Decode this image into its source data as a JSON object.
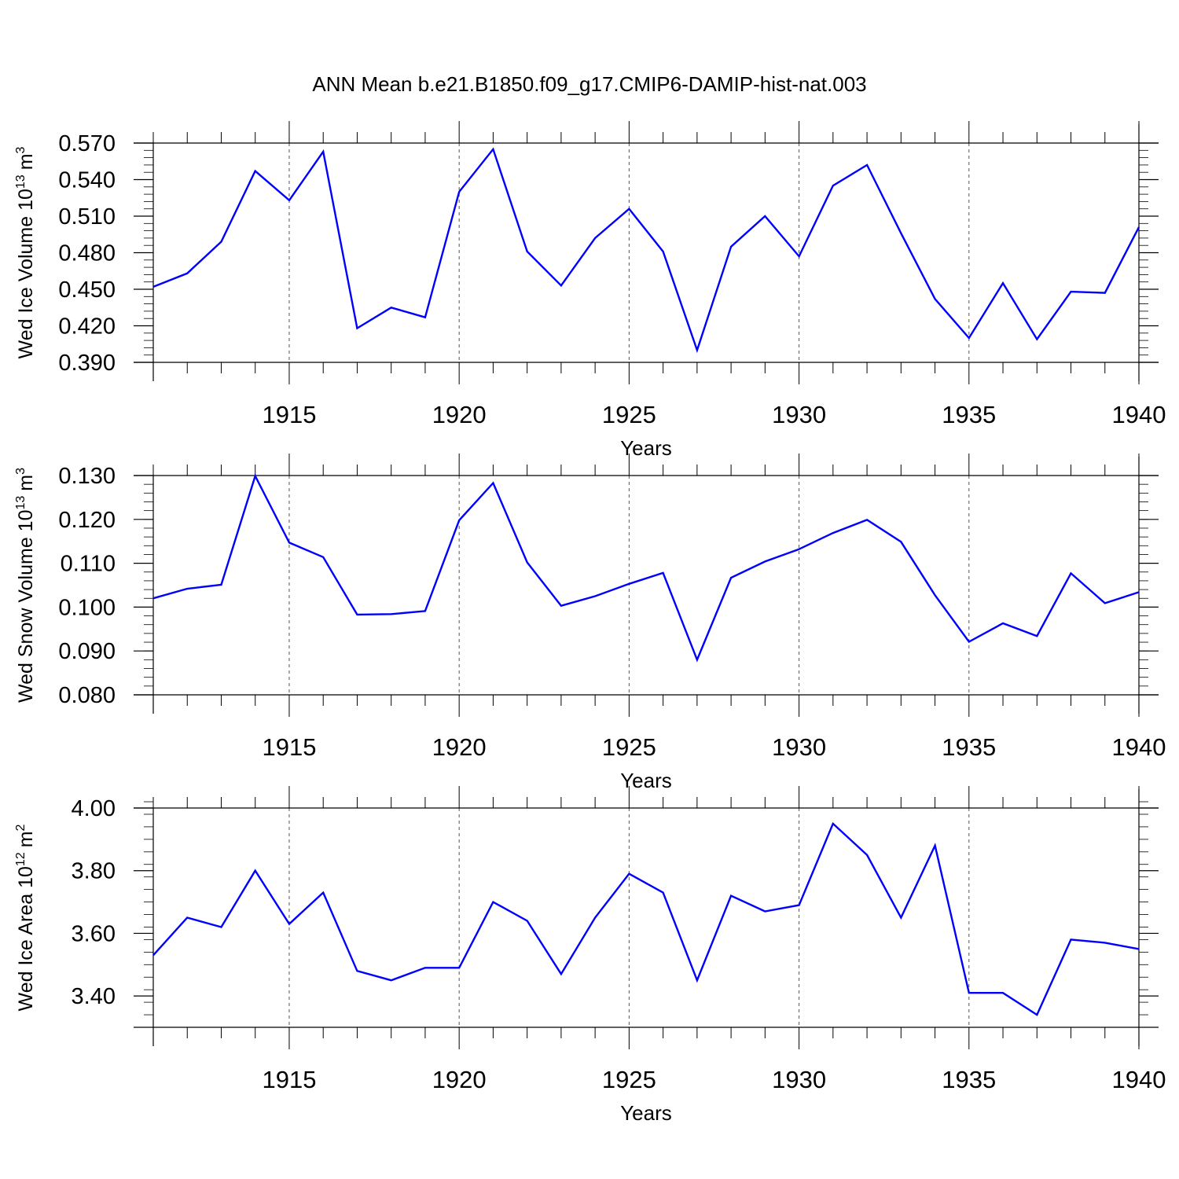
{
  "title": "ANN Mean b.e21.B1850.f09_g17.CMIP6-DAMIP-hist-nat.003",
  "colors": {
    "line": "#0000ff",
    "axis": "#000000",
    "grid": "#555555",
    "background": "#ffffff"
  },
  "chart_data": [
    {
      "type": "line",
      "xlabel": "Years",
      "ylabel": "Wed Ice Volume 10",
      "ylabel_sup": "13",
      "ylabel_unit": "m",
      "ylabel_unit_sup": "3",
      "xlim": [
        1911,
        1940
      ],
      "ylim": [
        0.39,
        0.57
      ],
      "grid": "vertical dashed at major x ticks",
      "x_ticks": [
        1915,
        1920,
        1925,
        1930,
        1935,
        1940
      ],
      "x_tick_labels": [
        "1915",
        "1920",
        "1925",
        "1930",
        "1935",
        "1940"
      ],
      "y_ticks": [
        0.39,
        0.42,
        0.45,
        0.48,
        0.51,
        0.54,
        0.57
      ],
      "y_tick_labels": [
        "0.390",
        "0.420",
        "0.450",
        "0.480",
        "0.510",
        "0.540",
        "0.570"
      ],
      "y_minor_step": 0.006,
      "series": [
        {
          "x": [
            1911,
            1912,
            1913,
            1914,
            1915,
            1916,
            1917,
            1918,
            1919,
            1920,
            1921,
            1922,
            1923,
            1924,
            1925,
            1926,
            1927,
            1928,
            1929,
            1930,
            1931,
            1932,
            1933,
            1934,
            1935,
            1936,
            1937,
            1938,
            1939,
            1940
          ],
          "values": [
            0.452,
            0.463,
            0.489,
            0.547,
            0.523,
            0.563,
            0.418,
            0.435,
            0.427,
            0.53,
            0.565,
            0.481,
            0.453,
            0.492,
            0.516,
            0.481,
            0.4,
            0.485,
            0.51,
            0.477,
            0.535,
            0.552,
            0.496,
            0.442,
            0.41,
            0.455,
            0.409,
            0.448,
            0.447,
            0.501
          ]
        }
      ]
    },
    {
      "type": "line",
      "xlabel": "Years",
      "ylabel": "Wed Snow Volume 10",
      "ylabel_sup": "13",
      "ylabel_unit": "m",
      "ylabel_unit_sup": "3",
      "xlim": [
        1911,
        1940
      ],
      "ylim": [
        0.08,
        0.13
      ],
      "grid": "vertical dashed at major x ticks",
      "x_ticks": [
        1915,
        1920,
        1925,
        1930,
        1935,
        1940
      ],
      "x_tick_labels": [
        "1915",
        "1920",
        "1925",
        "1930",
        "1935",
        "1940"
      ],
      "y_ticks": [
        0.08,
        0.09,
        0.1,
        0.11,
        0.12,
        0.13
      ],
      "y_tick_labels": [
        "0.080",
        "0.090",
        "0.100",
        "0.110",
        "0.120",
        "0.130"
      ],
      "y_minor_step": 0.002,
      "series": [
        {
          "x": [
            1911,
            1912,
            1913,
            1914,
            1915,
            1916,
            1917,
            1918,
            1919,
            1920,
            1921,
            1922,
            1923,
            1924,
            1925,
            1926,
            1927,
            1928,
            1929,
            1930,
            1931,
            1932,
            1933,
            1934,
            1935,
            1936,
            1937,
            1938,
            1939,
            1940
          ],
          "values": [
            0.102,
            0.1042,
            0.1051,
            0.1299,
            0.1147,
            0.1114,
            0.0983,
            0.0984,
            0.0991,
            0.1198,
            0.1283,
            0.1102,
            0.1003,
            0.1025,
            0.1053,
            0.1078,
            0.088,
            0.1067,
            0.1104,
            0.1132,
            0.1169,
            0.1199,
            0.1149,
            0.1027,
            0.0921,
            0.0963,
            0.0934,
            0.1077,
            0.1009,
            0.1034
          ]
        }
      ]
    },
    {
      "type": "line",
      "xlabel": "Years",
      "ylabel": "Wed Ice Area 10",
      "ylabel_sup": "12",
      "ylabel_unit": "m",
      "ylabel_unit_sup": "2",
      "xlim": [
        1911,
        1940
      ],
      "ylim": [
        3.3,
        4.0
      ],
      "grid": "vertical dashed at major x ticks",
      "x_ticks": [
        1915,
        1920,
        1925,
        1930,
        1935,
        1940
      ],
      "x_tick_labels": [
        "1915",
        "1920",
        "1925",
        "1930",
        "1935",
        "1940"
      ],
      "y_ticks": [
        3.4,
        3.6,
        3.8,
        4.0
      ],
      "y_tick_labels": [
        "3.40",
        "3.60",
        "3.80",
        "4.00"
      ],
      "y_minor_step": 0.04,
      "series": [
        {
          "x": [
            1911,
            1912,
            1913,
            1914,
            1915,
            1916,
            1917,
            1918,
            1919,
            1920,
            1921,
            1922,
            1923,
            1924,
            1925,
            1926,
            1927,
            1928,
            1929,
            1930,
            1931,
            1932,
            1933,
            1934,
            1935,
            1936,
            1937,
            1938,
            1939,
            1940
          ],
          "values": [
            3.53,
            3.65,
            3.62,
            3.8,
            3.63,
            3.73,
            3.48,
            3.45,
            3.49,
            3.49,
            3.7,
            3.64,
            3.47,
            3.65,
            3.79,
            3.73,
            3.45,
            3.72,
            3.67,
            3.69,
            3.95,
            3.85,
            3.65,
            3.88,
            3.41,
            3.41,
            3.34,
            3.58,
            3.57,
            3.55
          ]
        }
      ]
    }
  ]
}
